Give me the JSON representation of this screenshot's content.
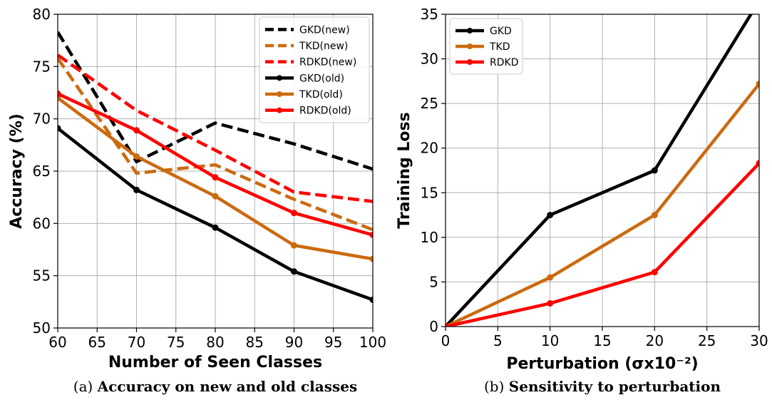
{
  "chart_data": [
    {
      "type": "line",
      "caption_prefix": "(a)",
      "caption": "Accuracy on new and old classes",
      "xlabel": "Number of Seen Classes",
      "ylabel": "Accuracy (%)",
      "xlim": [
        60,
        100
      ],
      "ylim": [
        50,
        80
      ],
      "xticks": [
        60,
        65,
        70,
        75,
        80,
        85,
        90,
        95,
        100
      ],
      "yticks": [
        50,
        55,
        60,
        65,
        70,
        75,
        80
      ],
      "x": [
        60,
        70,
        80,
        90,
        100
      ],
      "grid": true,
      "legend_position": "top-right",
      "series": [
        {
          "name": "GKD(new)",
          "color": "#000000",
          "style": "dashed",
          "values": [
            78.3,
            65.9,
            69.6,
            67.6,
            65.2
          ]
        },
        {
          "name": "TKD(new)",
          "color": "#cc6a10",
          "style": "dashed",
          "values": [
            75.8,
            64.8,
            65.6,
            62.3,
            59.4
          ]
        },
        {
          "name": "RDKD(new)",
          "color": "#ff0000",
          "style": "dashed",
          "values": [
            76.1,
            70.8,
            67.0,
            63.0,
            62.1
          ]
        },
        {
          "name": "GKD(old)",
          "color": "#000000",
          "style": "solid",
          "values": [
            69.1,
            63.2,
            59.6,
            55.4,
            52.7
          ]
        },
        {
          "name": "TKD(old)",
          "color": "#cc6a10",
          "style": "solid",
          "values": [
            72.0,
            66.4,
            62.6,
            57.9,
            56.6
          ]
        },
        {
          "name": "RDKD(old)",
          "color": "#ff0000",
          "style": "solid",
          "values": [
            72.4,
            68.9,
            64.4,
            61.0,
            58.9
          ]
        }
      ]
    },
    {
      "type": "line",
      "caption_prefix": "(b)",
      "caption": "Sensitivity to perturbation",
      "xlabel": "Perturbation (σx10⁻²)",
      "ylabel": "Training Loss",
      "xlim": [
        0,
        30
      ],
      "ylim": [
        0,
        35
      ],
      "xticks": [
        0,
        5,
        10,
        15,
        20,
        25,
        30
      ],
      "yticks": [
        0,
        5,
        10,
        15,
        20,
        25,
        30,
        35
      ],
      "x": [
        0,
        10,
        20,
        30
      ],
      "grid": true,
      "legend_position": "top-left",
      "series": [
        {
          "name": "GKD",
          "color": "#000000",
          "style": "solid",
          "values": [
            0,
            12.5,
            17.5,
            36.5
          ]
        },
        {
          "name": "TKD",
          "color": "#cc6a10",
          "style": "solid",
          "values": [
            0,
            5.5,
            12.5,
            27.2
          ]
        },
        {
          "name": "RDKD",
          "color": "#ff0000",
          "style": "solid",
          "values": [
            0,
            2.6,
            6.1,
            18.3
          ]
        }
      ]
    }
  ]
}
